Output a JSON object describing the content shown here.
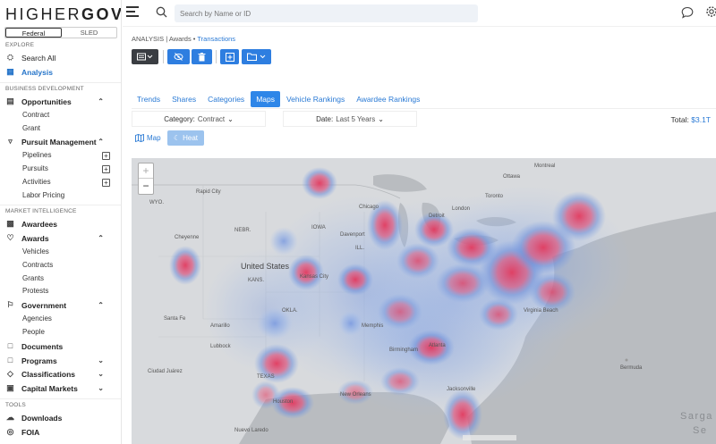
{
  "app": {
    "logo_main": "HIGHER",
    "logo_gov": "GOV"
  },
  "scope": {
    "federal": "Federal",
    "sled": "SLED"
  },
  "sidebar": {
    "sections": {
      "explore": "EXPLORE",
      "bizdev": "BUSINESS DEVELOPMENT",
      "intel": "MARKET INTELLIGENCE",
      "tools": "TOOLS"
    },
    "search_all": "Search All",
    "analysis": "Analysis",
    "opportunities": "Opportunities",
    "contract": "Contract",
    "grant": "Grant",
    "pursuit_management": "Pursuit Management",
    "pipelines": "Pipelines",
    "pursuits": "Pursuits",
    "activities": "Activities",
    "labor_pricing": "Labor Pricing",
    "awardees": "Awardees",
    "awards": "Awards",
    "vehicles": "Vehicles",
    "contracts": "Contracts",
    "grants": "Grants",
    "protests": "Protests",
    "government": "Government",
    "agencies": "Agencies",
    "people": "People",
    "documents": "Documents",
    "programs": "Programs",
    "classifications": "Classifications",
    "capital_markets": "Capital Markets",
    "downloads": "Downloads",
    "foia": "FOIA"
  },
  "topbar": {
    "search_placeholder": "Search by Name or ID"
  },
  "breadcrumb": {
    "part1": "ANALYSIS | Awards",
    "sep": " • ",
    "part2": "Transactions"
  },
  "tabs": [
    "Trends",
    "Shares",
    "Categories",
    "Maps",
    "Vehicle Rankings",
    "Awardee Rankings"
  ],
  "active_tab": "Maps",
  "filters": {
    "category_label": "Category:",
    "category_value": "Contract",
    "date_label": "Date:",
    "date_value": "Last 5 Years"
  },
  "total": {
    "label": "Total:",
    "value": "$3.1T"
  },
  "map_modes": {
    "map": "Map",
    "heat": "Heat",
    "active": "Heat"
  },
  "map": {
    "zoom_in": "+",
    "zoom_out": "−",
    "labels": {
      "united_states": "United States",
      "rapid_city": "Rapid City",
      "wyo": "WYO.",
      "cheyenne": "Cheyenne",
      "nebr": "NEBR.",
      "kans": "KANS.",
      "kansas_city": "Kansas City",
      "iowa": "IOWA",
      "ill": "ILL.",
      "chicago": "Chicago",
      "davenport": "Davenport",
      "ottawa": "Ottawa",
      "montreal": "Montreal",
      "toronto": "Toronto",
      "london": "London",
      "detroit": "Detroit",
      "okla": "OKLA.",
      "santa_fe": "Santa Fe",
      "amarillo": "Amarillo",
      "lubbock": "Lubbock",
      "memphis": "Memphis",
      "birmingham": "Birmingham",
      "atlanta": "Atlanta",
      "virginia_beach": "Virginia Beach",
      "bermuda": "Bermuda",
      "ciudad_juarez": "Ciudad Juárez",
      "texas": "TEXAS",
      "houston": "Houston",
      "new_orleans": "New Orleans",
      "jacksonville": "Jacksonville",
      "nuevo_laredo": "Nuevo Laredo",
      "sargasso": "Sarga",
      "sea": "Se"
    }
  }
}
